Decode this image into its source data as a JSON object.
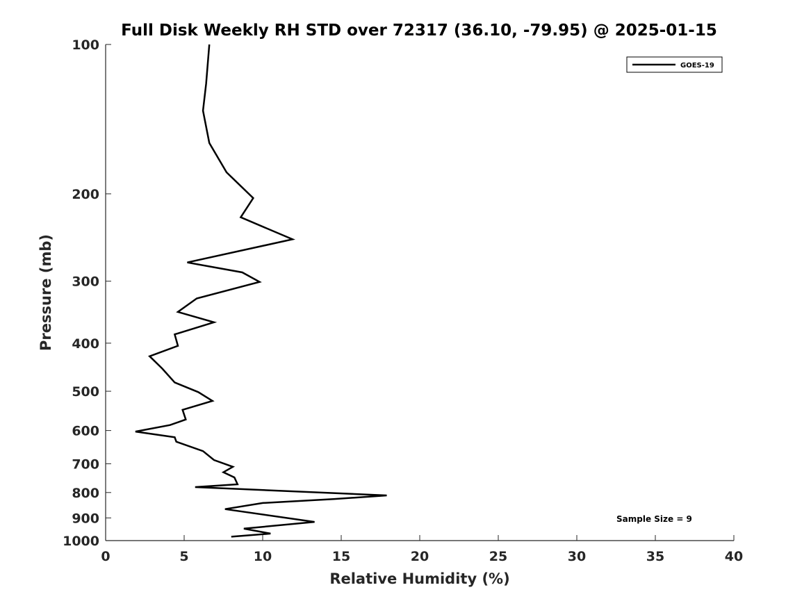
{
  "chart_data": {
    "type": "line",
    "title": "Full Disk Weekly RH STD over 72317 (36.10, -79.95) @ 2025-01-15",
    "xlabel": "Relative Humidity (%)",
    "ylabel": "Pressure (mb)",
    "xlim": [
      0,
      40
    ],
    "ylim": [
      100,
      1000
    ],
    "y_scale": "log",
    "y_inverted": true,
    "xticks": [
      0,
      5,
      10,
      15,
      20,
      25,
      30,
      35,
      40
    ],
    "yticks": [
      100,
      200,
      300,
      400,
      500,
      600,
      700,
      800,
      900,
      1000
    ],
    "grid": false,
    "legend_position": "top-right",
    "annotation": "Sample Size = 9",
    "series": [
      {
        "name": "GOES-19",
        "color": "#000000",
        "points": [
          [
            6.6,
            100
          ],
          [
            6.4,
            120
          ],
          [
            6.2,
            136
          ],
          [
            6.6,
            158
          ],
          [
            7.7,
            181
          ],
          [
            9.4,
            204
          ],
          [
            8.6,
            223
          ],
          [
            11.9,
            247
          ],
          [
            5.2,
            275
          ],
          [
            8.7,
            288
          ],
          [
            9.8,
            301
          ],
          [
            5.8,
            325
          ],
          [
            4.6,
            346
          ],
          [
            6.9,
            363
          ],
          [
            4.4,
            384
          ],
          [
            4.6,
            405
          ],
          [
            2.8,
            425
          ],
          [
            3.6,
            450
          ],
          [
            4.4,
            480
          ],
          [
            5.9,
            502
          ],
          [
            6.8,
            523
          ],
          [
            4.9,
            545
          ],
          [
            5.1,
            570
          ],
          [
            4.1,
            585
          ],
          [
            1.9,
            603
          ],
          [
            4.4,
            619
          ],
          [
            4.5,
            632
          ],
          [
            6.2,
            660
          ],
          [
            6.9,
            688
          ],
          [
            8.1,
            710
          ],
          [
            7.5,
            728
          ],
          [
            8.2,
            746
          ],
          [
            8.4,
            770
          ],
          [
            5.7,
            780
          ],
          [
            17.9,
            811
          ],
          [
            14.5,
            825
          ],
          [
            10.0,
            840
          ],
          [
            7.6,
            864
          ],
          [
            13.3,
            917
          ],
          [
            8.8,
            946
          ],
          [
            10.5,
            968
          ],
          [
            8.0,
            982
          ]
        ]
      }
    ]
  }
}
